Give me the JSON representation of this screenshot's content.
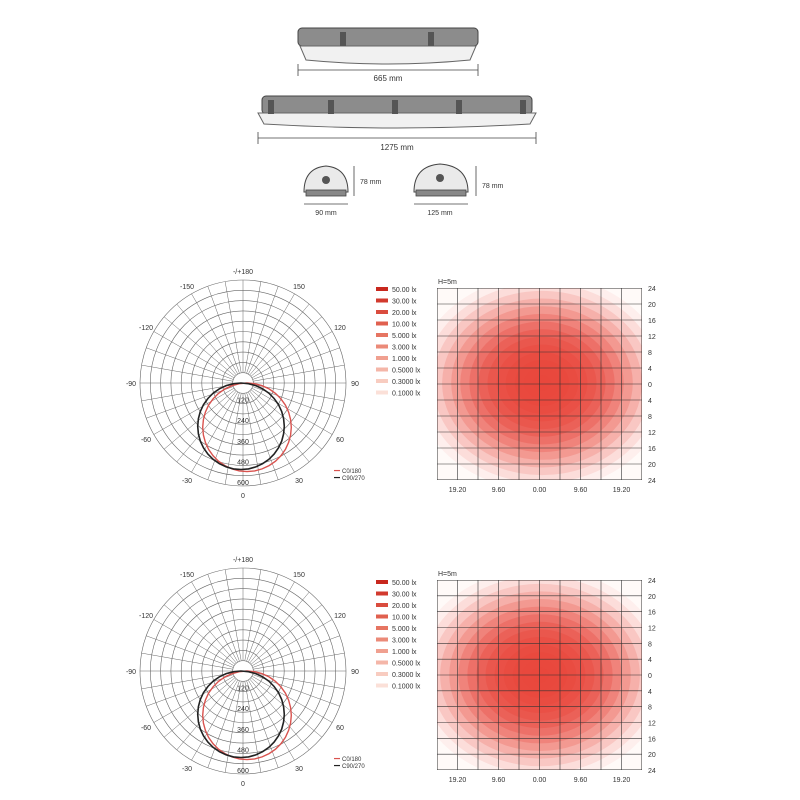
{
  "dimensions": {
    "short_length": "665 mm",
    "long_length": "1275 mm",
    "small_width": "90 mm",
    "small_height": "78 mm",
    "large_width": "125 mm",
    "large_height": "78 mm"
  },
  "colors": {
    "housing": "#8c8c8c",
    "housing_dark": "#555555",
    "grid": "#666666",
    "polar_curve_c0": "#222222",
    "polar_curve_c90": "#d9534f",
    "iso_center": "#e8473c"
  },
  "polar_angles": [
    "-/+180",
    "-150",
    "150",
    "-120",
    "120",
    "-90",
    "90",
    "-60",
    "60",
    "-30",
    "30",
    "0"
  ],
  "polar_radials": [
    "120",
    "240",
    "360",
    "480",
    "600"
  ],
  "polar_legend": [
    "C0/180",
    "C90/270"
  ],
  "isolux_levels": [
    "50.00 lx",
    "30.00 lx",
    "20.00 lx",
    "10.00 lx",
    "5.000 lx",
    "3.000 lx",
    "1.000 lx",
    "0.5000 lx",
    "0.3000 lx",
    "0.1000 lx"
  ],
  "isolux_level_colors": [
    "#c8281e",
    "#d23a2e",
    "#da4c3e",
    "#e0604f",
    "#e67562",
    "#eb8a78",
    "#f0a090",
    "#f4b6a8",
    "#f8ccc0",
    "#fbe0d8"
  ],
  "isolux_height": "H=5m",
  "isolux_right_ticks": [
    "24",
    "20",
    "16",
    "12",
    "8",
    "4",
    "0",
    "4",
    "8",
    "12",
    "16",
    "20",
    "24"
  ],
  "isolux_bottom_ticks": [
    "19.20",
    "9.60",
    "0.00",
    "9.60",
    "19.20"
  ],
  "diagrams": [
    {
      "id": "diagram-1"
    },
    {
      "id": "diagram-2"
    }
  ]
}
